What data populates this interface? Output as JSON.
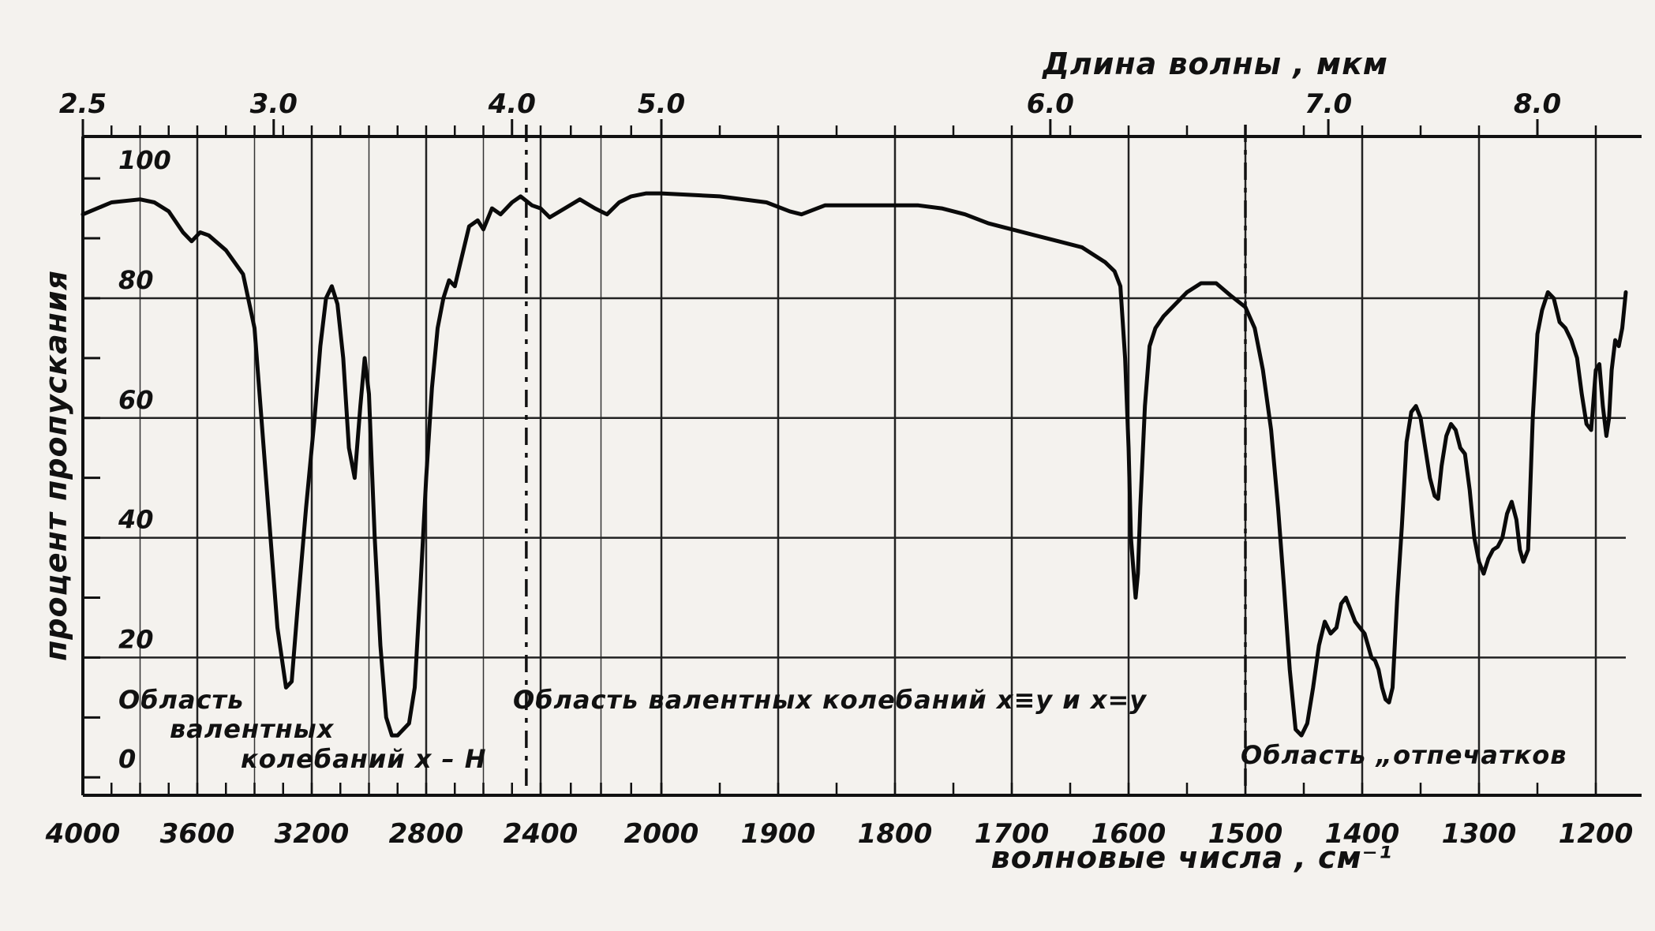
{
  "chart_data": {
    "type": "line",
    "xlabel": "волновые числа , см⁻¹",
    "ylabel": "процент пропускания",
    "top_axis_label": "Длина волны , мкм",
    "x_tick_labels": [
      "4000",
      "3600",
      "3200",
      "2800",
      "2400",
      "2000",
      "1900",
      "1800",
      "1700",
      "1600",
      "1500",
      "1400",
      "1300",
      "1200"
    ],
    "top_tick_labels": [
      {
        "label": "2.5",
        "wavenumber": 4000
      },
      {
        "label": "3.0",
        "wavenumber": 3333
      },
      {
        "label": "4.0",
        "wavenumber": 2500
      },
      {
        "label": "5.0",
        "wavenumber": 2000
      },
      {
        "label": "6.0",
        "wavenumber": 1667
      },
      {
        "label": "7.0",
        "wavenumber": 1429
      },
      {
        "label": "8.0",
        "wavenumber": 1250
      }
    ],
    "y_ticks": [
      0,
      20,
      40,
      60,
      80,
      100
    ],
    "ylim": [
      -3,
      107
    ],
    "x_scale": "piecewise: 4000–2000 cm⁻¹ compressed, 2000–1200 cm⁻¹ expanded",
    "grid": true,
    "region_dividers": [
      2450,
      1500
    ],
    "region_labels": {
      "left": [
        "Область",
        "валентных",
        "колебаний x – H"
      ],
      "middle": "Область валентных колебаний x≡y и x=y",
      "right": "Область „отпечатков"
    },
    "series": [
      {
        "points": [
          [
            4000,
            94
          ],
          [
            3900,
            96
          ],
          [
            3800,
            96.5
          ],
          [
            3750,
            96
          ],
          [
            3700,
            94.5
          ],
          [
            3650,
            91
          ],
          [
            3620,
            89.5
          ],
          [
            3590,
            91
          ],
          [
            3560,
            90.5
          ],
          [
            3500,
            88
          ],
          [
            3440,
            84
          ],
          [
            3400,
            75
          ],
          [
            3360,
            50
          ],
          [
            3320,
            25
          ],
          [
            3290,
            15
          ],
          [
            3270,
            16
          ],
          [
            3250,
            28
          ],
          [
            3220,
            45
          ],
          [
            3190,
            60
          ],
          [
            3170,
            72
          ],
          [
            3150,
            80
          ],
          [
            3130,
            82
          ],
          [
            3110,
            79
          ],
          [
            3090,
            70
          ],
          [
            3070,
            55
          ],
          [
            3050,
            50
          ],
          [
            3030,
            62
          ],
          [
            3015,
            70
          ],
          [
            3000,
            64
          ],
          [
            2990,
            52
          ],
          [
            2980,
            40
          ],
          [
            2960,
            22
          ],
          [
            2940,
            10
          ],
          [
            2920,
            7
          ],
          [
            2900,
            7
          ],
          [
            2880,
            8
          ],
          [
            2860,
            9
          ],
          [
            2840,
            15
          ],
          [
            2820,
            32
          ],
          [
            2800,
            50
          ],
          [
            2780,
            65
          ],
          [
            2760,
            75
          ],
          [
            2740,
            80
          ],
          [
            2720,
            83
          ],
          [
            2700,
            82
          ],
          [
            2680,
            86
          ],
          [
            2650,
            92
          ],
          [
            2620,
            93
          ],
          [
            2600,
            91.5
          ],
          [
            2570,
            95
          ],
          [
            2540,
            94
          ],
          [
            2500,
            96
          ],
          [
            2470,
            97
          ],
          [
            2430,
            95.5
          ],
          [
            2400,
            95
          ],
          [
            2370,
            93.5
          ],
          [
            2320,
            95
          ],
          [
            2270,
            96.5
          ],
          [
            2220,
            95
          ],
          [
            2180,
            94
          ],
          [
            2140,
            96
          ],
          [
            2100,
            97
          ],
          [
            2050,
            97.5
          ],
          [
            2000,
            97.5
          ],
          [
            1950,
            97
          ],
          [
            1910,
            96
          ],
          [
            1890,
            94.5
          ],
          [
            1880,
            94
          ],
          [
            1860,
            95.5
          ],
          [
            1830,
            95.5
          ],
          [
            1800,
            95.5
          ],
          [
            1780,
            95.5
          ],
          [
            1760,
            95
          ],
          [
            1740,
            94
          ],
          [
            1720,
            92.5
          ],
          [
            1700,
            91.5
          ],
          [
            1680,
            90.5
          ],
          [
            1660,
            89.5
          ],
          [
            1640,
            88.5
          ],
          [
            1620,
            86
          ],
          [
            1612,
            84.5
          ],
          [
            1607,
            82
          ],
          [
            1603,
            70
          ],
          [
            1600,
            55
          ],
          [
            1598,
            40
          ],
          [
            1596,
            35
          ],
          [
            1594,
            30
          ],
          [
            1592,
            34
          ],
          [
            1590,
            45
          ],
          [
            1586,
            62
          ],
          [
            1582,
            72
          ],
          [
            1577,
            75
          ],
          [
            1570,
            77
          ],
          [
            1560,
            79
          ],
          [
            1550,
            81
          ],
          [
            1538,
            82.5
          ],
          [
            1525,
            82.5
          ],
          [
            1513,
            80.5
          ],
          [
            1500,
            78.5
          ],
          [
            1492,
            75
          ],
          [
            1485,
            68
          ],
          [
            1478,
            58
          ],
          [
            1472,
            45
          ],
          [
            1467,
            32
          ],
          [
            1462,
            18
          ],
          [
            1457,
            8
          ],
          [
            1452,
            7
          ],
          [
            1447,
            9
          ],
          [
            1442,
            15
          ],
          [
            1437,
            22
          ],
          [
            1432,
            26
          ],
          [
            1427,
            24
          ],
          [
            1422,
            25
          ],
          [
            1418,
            29
          ],
          [
            1414,
            30
          ],
          [
            1410,
            28
          ],
          [
            1406,
            26
          ],
          [
            1402,
            25
          ],
          [
            1398,
            24
          ],
          [
            1395,
            22
          ],
          [
            1392,
            20
          ],
          [
            1389,
            19.5
          ],
          [
            1386,
            18
          ],
          [
            1383,
            15
          ],
          [
            1380,
            13
          ],
          [
            1377,
            12.5
          ],
          [
            1374,
            15
          ],
          [
            1370,
            30
          ],
          [
            1366,
            42
          ],
          [
            1362,
            56
          ],
          [
            1358,
            61
          ],
          [
            1354,
            62
          ],
          [
            1350,
            60
          ],
          [
            1346,
            55
          ],
          [
            1342,
            50
          ],
          [
            1338,
            47
          ],
          [
            1335,
            46.5
          ],
          [
            1332,
            52
          ],
          [
            1328,
            57
          ],
          [
            1324,
            59
          ],
          [
            1320,
            58
          ],
          [
            1316,
            55
          ],
          [
            1312,
            54
          ],
          [
            1308,
            48
          ],
          [
            1304,
            40
          ],
          [
            1300,
            36
          ],
          [
            1296,
            34
          ],
          [
            1292,
            36.5
          ],
          [
            1288,
            38
          ],
          [
            1284,
            38.5
          ],
          [
            1280,
            40
          ],
          [
            1276,
            44
          ],
          [
            1272,
            46
          ],
          [
            1268,
            43
          ],
          [
            1265,
            38
          ],
          [
            1262,
            36
          ],
          [
            1258,
            38
          ],
          [
            1254,
            60
          ],
          [
            1250,
            74
          ],
          [
            1246,
            78
          ],
          [
            1241,
            81
          ],
          [
            1236,
            80
          ],
          [
            1231,
            76
          ],
          [
            1226,
            75
          ],
          [
            1221,
            73
          ],
          [
            1216,
            70
          ],
          [
            1212,
            64
          ],
          [
            1208,
            59
          ],
          [
            1204,
            58
          ],
          [
            1200,
            68
          ],
          [
            1196,
            69
          ],
          [
            1192,
            62
          ],
          [
            1188,
            57
          ],
          [
            1185,
            60
          ],
          [
            1182,
            68
          ],
          [
            1178,
            73
          ],
          [
            1174,
            72
          ],
          [
            1170,
            75
          ],
          [
            1166,
            81
          ]
        ]
      }
    ]
  }
}
